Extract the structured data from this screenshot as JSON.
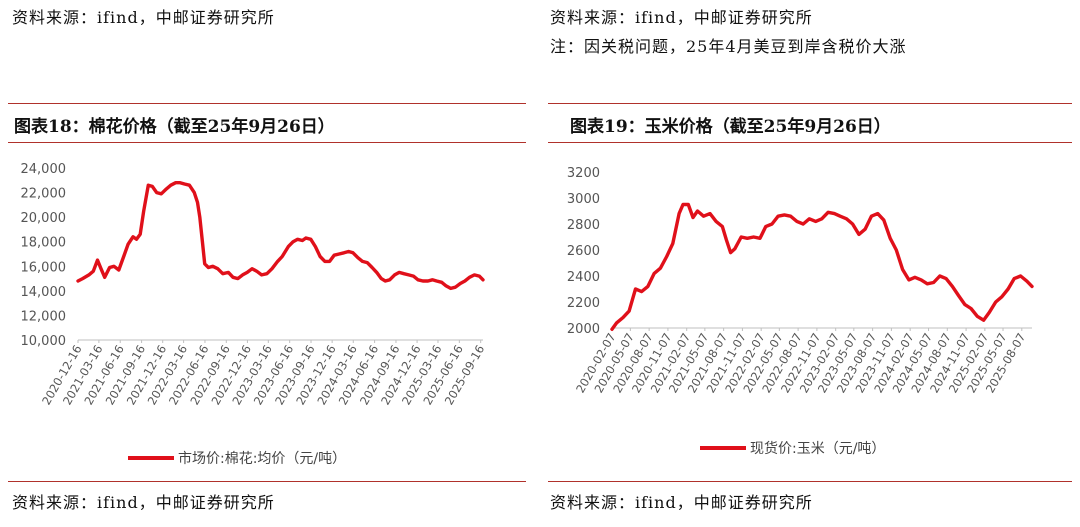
{
  "top": {
    "left_source": "资料来源：ifind，中邮证券研究所",
    "right_source": "资料来源：ifind，中邮证券研究所",
    "right_note": "注：因关税问题，25年4月美豆到岸含税价大涨"
  },
  "bottom": {
    "left_source": "资料来源：ifind，中邮证券研究所",
    "right_source": "资料来源：ifind，中邮证券研究所"
  },
  "colors": {
    "line": "#e0101a",
    "rule": "#b0312b",
    "axis": "#bfbfbf"
  },
  "chart_data": [
    {
      "type": "line",
      "title": "图表18：棉花价格（截至25年9月26日）",
      "legend": "市场价:棉花:均价（元/吨）",
      "ylim": [
        10000,
        24000
      ],
      "yticks": [
        10000,
        12000,
        14000,
        16000,
        18000,
        20000,
        22000,
        24000
      ],
      "ytick_labels": [
        "10,000",
        "12,000",
        "14,000",
        "16,000",
        "18,000",
        "20,000",
        "22,000",
        "24,000"
      ],
      "xlim": [
        "2020-12-16",
        "2025-09-26"
      ],
      "xticks": [
        "2020-12-16",
        "2021-03-16",
        "2021-06-16",
        "2021-09-16",
        "2021-12-16",
        "2022-03-16",
        "2022-06-16",
        "2022-09-16",
        "2022-12-16",
        "2023-03-16",
        "2023-06-16",
        "2023-09-16",
        "2023-12-16",
        "2024-03-16",
        "2024-06-16",
        "2024-09-16",
        "2024-12-16",
        "2025-03-16",
        "2025-06-16",
        "2025-09-16"
      ],
      "series": [
        {
          "x": [
            "2020-12-16",
            "2021-01-05",
            "2021-02-01",
            "2021-02-20",
            "2021-03-10",
            "2021-03-25",
            "2021-04-10",
            "2021-05-01",
            "2021-05-20",
            "2021-06-10",
            "2021-07-01",
            "2021-07-20",
            "2021-08-10",
            "2021-08-25",
            "2021-09-10",
            "2021-09-25",
            "2021-10-15",
            "2021-11-01",
            "2021-11-20",
            "2021-12-10",
            "2022-01-01",
            "2022-01-20",
            "2022-02-10",
            "2022-03-01",
            "2022-03-20",
            "2022-04-10",
            "2022-05-01",
            "2022-05-15",
            "2022-05-25",
            "2022-06-05",
            "2022-06-15",
            "2022-07-01",
            "2022-07-20",
            "2022-08-10",
            "2022-09-01",
            "2022-09-25",
            "2022-10-15",
            "2022-11-05",
            "2022-11-25",
            "2022-12-15",
            "2023-01-05",
            "2023-01-25",
            "2023-02-15",
            "2023-03-10",
            "2023-04-01",
            "2023-04-25",
            "2023-05-15",
            "2023-06-10",
            "2023-07-01",
            "2023-07-20",
            "2023-08-10",
            "2023-08-25",
            "2023-09-15",
            "2023-10-05",
            "2023-10-25",
            "2023-11-15",
            "2023-12-05",
            "2023-12-25",
            "2024-01-15",
            "2024-02-05",
            "2024-02-25",
            "2024-03-15",
            "2024-04-05",
            "2024-04-25",
            "2024-05-15",
            "2024-06-05",
            "2024-06-25",
            "2024-07-15",
            "2024-08-01",
            "2024-08-20",
            "2024-09-10",
            "2024-09-30",
            "2024-10-20",
            "2024-11-10",
            "2024-11-30",
            "2024-12-20",
            "2025-01-10",
            "2025-02-01",
            "2025-02-20",
            "2025-03-10",
            "2025-04-01",
            "2025-04-20",
            "2025-05-10",
            "2025-05-30",
            "2025-06-20",
            "2025-07-10",
            "2025-07-30",
            "2025-08-20",
            "2025-09-10",
            "2025-09-26"
          ],
          "y": [
            14800,
            15000,
            15300,
            15600,
            16500,
            15800,
            15100,
            15900,
            16000,
            15700,
            16800,
            17800,
            18400,
            18200,
            18600,
            20500,
            22600,
            22500,
            22000,
            21900,
            22300,
            22600,
            22800,
            22800,
            22700,
            22600,
            22000,
            21200,
            20000,
            18000,
            16200,
            15900,
            16000,
            15800,
            15400,
            15500,
            15100,
            15000,
            15300,
            15500,
            15800,
            15600,
            15300,
            15400,
            15800,
            16400,
            16800,
            17600,
            18000,
            18200,
            18100,
            18300,
            18200,
            17600,
            16800,
            16400,
            16400,
            16900,
            17000,
            17100,
            17200,
            17100,
            16700,
            16400,
            16300,
            15900,
            15500,
            15000,
            14800,
            14900,
            15300,
            15500,
            15400,
            15300,
            15200,
            14900,
            14800,
            14800,
            14900,
            14800,
            14700,
            14400,
            14200,
            14300,
            14600,
            14800,
            15100,
            15300,
            15200,
            14900
          ]
        }
      ]
    },
    {
      "type": "line",
      "title": "图表19：玉米价格（截至25年9月26日）",
      "legend": "现货价:玉米（元/吨）",
      "ylim": [
        2000,
        3200
      ],
      "yticks": [
        2000,
        2200,
        2400,
        2600,
        2800,
        3000,
        3200
      ],
      "ytick_labels": [
        "2000",
        "2200",
        "2400",
        "2600",
        "2800",
        "3000",
        "3200"
      ],
      "xlim": [
        "2020-02-07",
        "2025-09-26"
      ],
      "xticks": [
        "2020-02-07",
        "2020-05-07",
        "2020-08-07",
        "2020-11-07",
        "2021-02-07",
        "2021-05-07",
        "2021-08-07",
        "2021-11-07",
        "2022-02-07",
        "2022-05-07",
        "2022-08-07",
        "2022-11-07",
        "2023-02-07",
        "2023-05-07",
        "2023-08-07",
        "2023-11-07",
        "2024-02-07",
        "2024-05-07",
        "2024-08-07",
        "2024-11-07",
        "2025-02-07",
        "2025-05-07",
        "2025-08-07"
      ],
      "series": [
        {
          "x": [
            "2020-02-07",
            "2020-03-01",
            "2020-04-01",
            "2020-05-01",
            "2020-06-01",
            "2020-07-01",
            "2020-08-01",
            "2020-09-01",
            "2020-10-01",
            "2020-11-01",
            "2020-12-01",
            "2021-01-01",
            "2021-01-20",
            "2021-02-15",
            "2021-03-10",
            "2021-04-01",
            "2021-05-01",
            "2021-06-01",
            "2021-07-01",
            "2021-08-01",
            "2021-08-20",
            "2021-09-10",
            "2021-10-01",
            "2021-11-01",
            "2021-12-01",
            "2022-01-01",
            "2022-02-01",
            "2022-03-01",
            "2022-04-01",
            "2022-05-01",
            "2022-06-01",
            "2022-07-01",
            "2022-08-01",
            "2022-09-01",
            "2022-10-01",
            "2022-11-01",
            "2022-12-01",
            "2023-01-01",
            "2023-02-01",
            "2023-03-01",
            "2023-04-01",
            "2023-05-01",
            "2023-06-01",
            "2023-07-01",
            "2023-08-01",
            "2023-09-01",
            "2023-10-01",
            "2023-11-01",
            "2023-12-01",
            "2024-01-01",
            "2024-02-01",
            "2024-03-01",
            "2024-04-01",
            "2024-05-01",
            "2024-06-01",
            "2024-07-01",
            "2024-08-01",
            "2024-09-01",
            "2024-10-01",
            "2024-11-01",
            "2024-12-01",
            "2025-01-01",
            "2025-02-01",
            "2025-03-01",
            "2025-04-01",
            "2025-05-01",
            "2025-06-01",
            "2025-07-01",
            "2025-08-01",
            "2025-09-01",
            "2025-09-26"
          ],
          "y": [
            1990,
            2040,
            2080,
            2130,
            2300,
            2280,
            2320,
            2420,
            2460,
            2550,
            2650,
            2880,
            2950,
            2950,
            2850,
            2900,
            2860,
            2880,
            2820,
            2780,
            2680,
            2580,
            2610,
            2700,
            2690,
            2700,
            2690,
            2780,
            2800,
            2860,
            2870,
            2860,
            2820,
            2800,
            2840,
            2820,
            2840,
            2890,
            2880,
            2860,
            2840,
            2800,
            2720,
            2760,
            2860,
            2880,
            2830,
            2690,
            2600,
            2450,
            2370,
            2390,
            2370,
            2340,
            2350,
            2400,
            2380,
            2320,
            2250,
            2180,
            2150,
            2090,
            2060,
            2120,
            2200,
            2240,
            2300,
            2380,
            2400,
            2360,
            2320
          ]
        }
      ]
    }
  ]
}
